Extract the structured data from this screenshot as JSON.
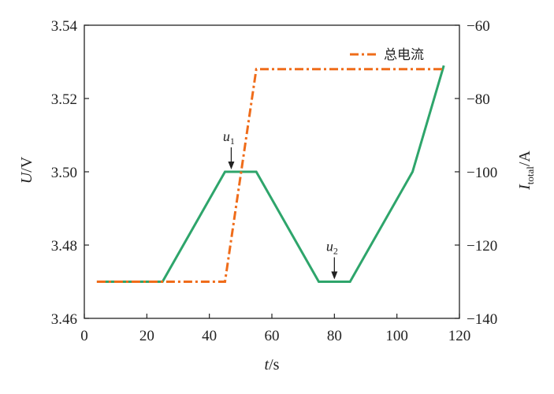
{
  "chart_data": {
    "type": "line",
    "x": {
      "label_var": "t",
      "label_unit": "s",
      "range": [
        0,
        120
      ],
      "ticks": [
        0,
        20,
        40,
        60,
        80,
        100,
        120
      ]
    },
    "y_left": {
      "label_var": "U",
      "label_unit": "V",
      "range": [
        3.46,
        3.54
      ],
      "ticks": [
        "3.46",
        "3.48",
        "3.50",
        "3.52",
        "3.54"
      ]
    },
    "y_right": {
      "label_var": "I",
      "label_sub": "total",
      "label_unit": "A",
      "range": [
        -140,
        -60
      ],
      "ticks": [
        "−140",
        "−120",
        "−100",
        "−80",
        "−60"
      ]
    },
    "series": [
      {
        "axis": "left",
        "color": "#2ea56b",
        "style": "solid",
        "points": [
          [
            4,
            3.47
          ],
          [
            25,
            3.47
          ],
          [
            45,
            3.5
          ],
          [
            55,
            3.5
          ],
          [
            75,
            3.47
          ],
          [
            85,
            3.47
          ],
          [
            105,
            3.5
          ],
          [
            115,
            3.529
          ]
        ]
      },
      {
        "name": "总电流",
        "axis": "right",
        "color": "#ef6c1a",
        "style": "dashdot",
        "points": [
          [
            4,
            -130
          ],
          [
            45,
            -130
          ],
          [
            55,
            -72
          ],
          [
            115,
            -72
          ]
        ]
      }
    ],
    "legend": {
      "position": "top-right"
    },
    "annotations": [
      {
        "base": "u",
        "sub": "1",
        "x": 47,
        "y": 3.5
      },
      {
        "base": "u",
        "sub": "2",
        "x": 80,
        "y": 3.47
      }
    ],
    "grid": false
  }
}
